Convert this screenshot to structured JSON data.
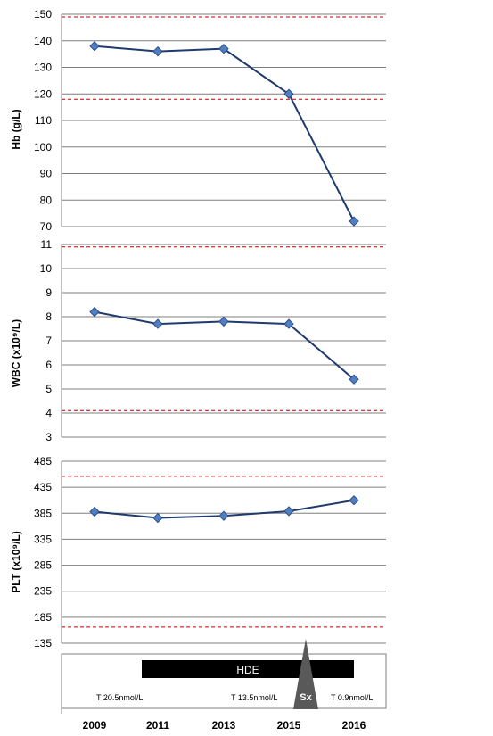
{
  "chart_data": [
    {
      "type": "line",
      "ylabel": "Hb (g/L)",
      "ylim": [
        70,
        150
      ],
      "yticks": [
        "70",
        "80",
        "90",
        "100",
        "110",
        "120",
        "130",
        "140",
        "150"
      ],
      "x": [
        "2009",
        "2011",
        "2013",
        "2015",
        "2016"
      ],
      "values": [
        138,
        136,
        137,
        120,
        72
      ],
      "reference_lines": [
        149,
        118
      ],
      "grid": true
    },
    {
      "type": "line",
      "ylabel": "WBC (x10⁹/L)",
      "ylim": [
        3,
        11
      ],
      "yticks": [
        "3",
        "4",
        "5",
        "6",
        "7",
        "8",
        "9",
        "10",
        "11"
      ],
      "x": [
        "2009",
        "2011",
        "2013",
        "2015",
        "2016"
      ],
      "values": [
        8.2,
        7.7,
        7.8,
        7.7,
        5.4
      ],
      "reference_lines": [
        10.9,
        4.1
      ],
      "grid": true
    },
    {
      "type": "line",
      "ylabel": "PLT (x10⁹/L)",
      "ylim": [
        135,
        485
      ],
      "yticks": [
        "135",
        "185",
        "235",
        "285",
        "335",
        "385",
        "435",
        "485"
      ],
      "x": [
        "2009",
        "2011",
        "2013",
        "2015",
        "2016"
      ],
      "values": [
        388,
        376,
        380,
        389,
        410
      ],
      "reference_lines": [
        456,
        166
      ],
      "grid": true
    }
  ],
  "timeline": {
    "bar_label": "HDE",
    "marker_label": "Sx",
    "notes": [
      "T 20.5nmol/L",
      "T 13.5nmol/L",
      "T 0.9nmol/L"
    ]
  },
  "x_axis": {
    "categories": [
      "2009",
      "2011",
      "2013",
      "2015",
      "2016"
    ]
  },
  "colors": {
    "line": "#1f3a6e",
    "marker_fill": "#4f7fc0",
    "marker_stroke": "#2c4f8a",
    "reference": "#c00000",
    "grid": "#7f7f7f",
    "hde_bar": "#000000",
    "sx_marker": "#595959"
  }
}
